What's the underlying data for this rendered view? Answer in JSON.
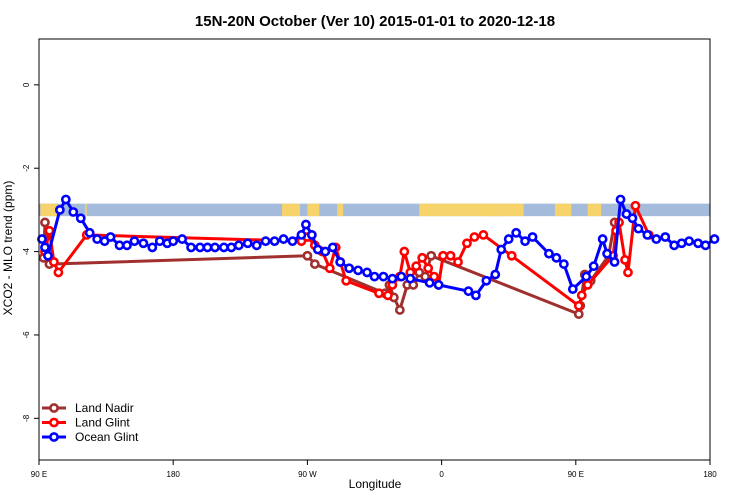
{
  "chart_data": {
    "type": "line",
    "title": "15N-20N October (Ver 10)   2015-01-01 to 2020-12-18",
    "xlabel": "Longitude",
    "ylabel": "XCO2 - MLO trend (ppm)",
    "x_ticks": [
      {
        "value": 90,
        "label": "90 E"
      },
      {
        "value": 180,
        "label": "180"
      },
      {
        "value": 270,
        "label": "90 W"
      },
      {
        "value": 360,
        "label": "0"
      },
      {
        "value": 450,
        "label": "90 E"
      },
      {
        "value": 540,
        "label": "180"
      }
    ],
    "y_ticks": [
      0,
      -2,
      -4,
      -6,
      -8
    ],
    "xlim": [
      90,
      540
    ],
    "ylim": [
      -9,
      1.1
    ],
    "grid": false,
    "legend_position": "bottom-left",
    "land_strip": {
      "ymin": -3.15,
      "ymax": -2.85,
      "ocean_color": "#a5bbdb",
      "land_color": "#f7d36b",
      "land_segments": [
        [
          91,
          102
        ],
        [
          121,
          122
        ],
        [
          253,
          265
        ],
        [
          270,
          278
        ],
        [
          290,
          294
        ],
        [
          345,
          400
        ],
        [
          393,
          415
        ],
        [
          436,
          447
        ],
        [
          458,
          467
        ]
      ]
    },
    "series": [
      {
        "name": "Land Nadir",
        "color": "#a0302e",
        "x": [
          93,
          94,
          97,
          270,
          275,
          322,
          325,
          328,
          332,
          337,
          341,
          345,
          349,
          353,
          452,
          453,
          456,
          460,
          472,
          476
        ],
        "y": [
          -4.15,
          -3.3,
          -4.3,
          -4.1,
          -4.3,
          -5.0,
          -4.8,
          -5.1,
          -5.4,
          -4.8,
          -4.8,
          -4.5,
          -4.6,
          -4.1,
          -5.5,
          -5.3,
          -4.55,
          -4.7,
          -4.1,
          -3.3
        ]
      },
      {
        "name": "Land Glint",
        "color": "#ff0000",
        "x": [
          94,
          97,
          100,
          103,
          122,
          266,
          270,
          275,
          280,
          285,
          289,
          292,
          296,
          318,
          324,
          327,
          332,
          335,
          339,
          343,
          347,
          351,
          355,
          358,
          361,
          366,
          371,
          377,
          382,
          388,
          407,
          452,
          454,
          458,
          475,
          477,
          479,
          483,
          485,
          490,
          499
        ],
        "y": [
          -4.0,
          -3.5,
          -4.25,
          -4.5,
          -3.6,
          -3.75,
          -3.65,
          -3.85,
          -4.0,
          -4.4,
          -3.9,
          -4.25,
          -4.7,
          -5.0,
          -5.05,
          -4.8,
          -4.6,
          -4.0,
          -4.5,
          -4.35,
          -4.15,
          -4.4,
          -4.6,
          -4.8,
          -4.1,
          -4.1,
          -4.25,
          -3.8,
          -3.65,
          -3.6,
          -4.1,
          -5.3,
          -5.05,
          -4.8,
          -4.1,
          -3.5,
          -3.3,
          -4.2,
          -4.5,
          -2.9,
          -3.6
        ]
      },
      {
        "name": "Ocean Glint",
        "color": "#0000ff",
        "x": [
          92,
          94,
          96,
          104,
          108,
          113,
          118,
          124,
          129,
          134,
          138,
          144,
          149,
          154,
          160,
          166,
          171,
          176,
          180,
          186,
          192,
          198,
          203,
          208,
          214,
          219,
          224,
          230,
          236,
          242,
          248,
          254,
          260,
          266,
          269,
          273,
          277,
          282,
          287,
          292,
          298,
          304,
          310,
          315,
          321,
          327,
          333,
          339,
          352,
          358,
          378,
          383,
          390,
          396,
          400,
          405,
          410,
          416,
          421,
          432,
          437,
          442,
          448,
          457,
          462,
          468,
          471,
          476,
          480,
          484,
          488,
          492,
          498,
          504,
          510,
          516,
          521,
          526,
          532,
          537,
          543
        ],
        "y": [
          -3.7,
          -3.9,
          -4.1,
          -3.0,
          -2.75,
          -3.05,
          -3.2,
          -3.55,
          -3.7,
          -3.75,
          -3.65,
          -3.85,
          -3.85,
          -3.75,
          -3.8,
          -3.9,
          -3.75,
          -3.8,
          -3.75,
          -3.7,
          -3.9,
          -3.9,
          -3.9,
          -3.9,
          -3.9,
          -3.9,
          -3.85,
          -3.8,
          -3.85,
          -3.75,
          -3.75,
          -3.7,
          -3.75,
          -3.6,
          -3.35,
          -3.6,
          -3.95,
          -4.0,
          -3.9,
          -4.25,
          -4.4,
          -4.45,
          -4.5,
          -4.6,
          -4.6,
          -4.65,
          -4.6,
          -4.65,
          -4.75,
          -4.8,
          -4.95,
          -5.05,
          -4.7,
          -4.55,
          -3.95,
          -3.7,
          -3.55,
          -3.75,
          -3.65,
          -4.05,
          -4.15,
          -4.3,
          -4.9,
          -4.6,
          -4.35,
          -3.7,
          -4.05,
          -4.25,
          -2.75,
          -3.1,
          -3.2,
          -3.45,
          -3.6,
          -3.7,
          -3.65,
          -3.85,
          -3.8,
          -3.75,
          -3.8,
          -3.85,
          -3.7
        ]
      }
    ]
  }
}
